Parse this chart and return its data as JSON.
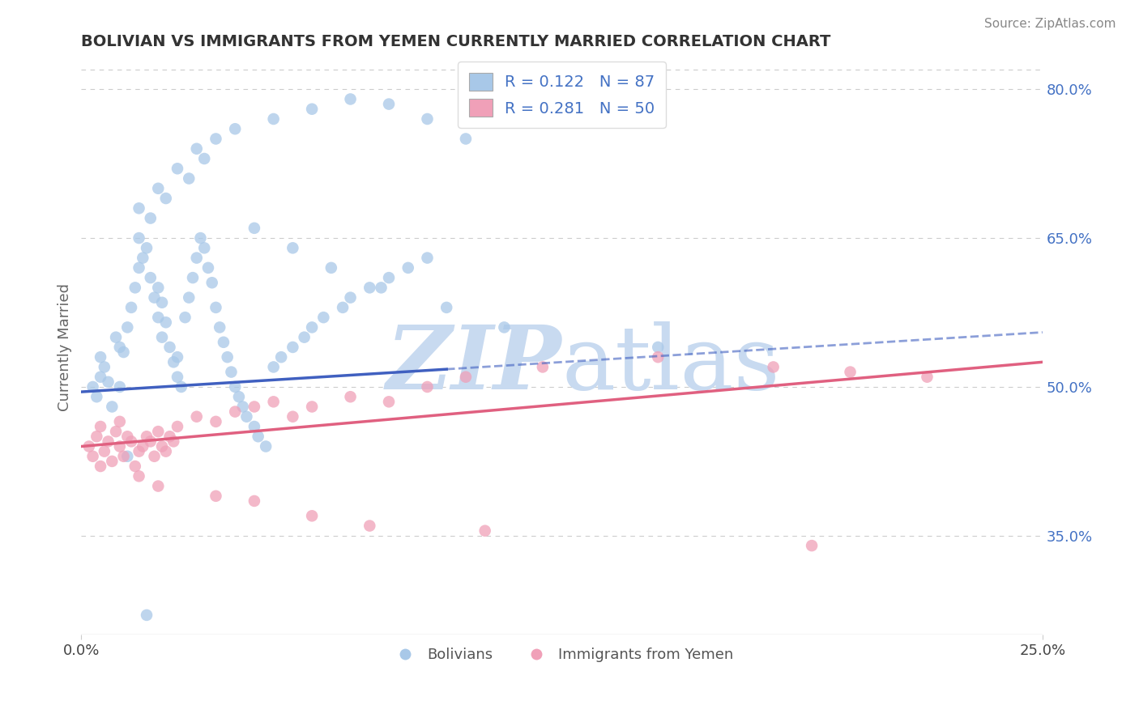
{
  "title": "BOLIVIAN VS IMMIGRANTS FROM YEMEN CURRENTLY MARRIED CORRELATION CHART",
  "source": "Source: ZipAtlas.com",
  "ylabel": "Currently Married",
  "xlim": [
    0.0,
    25.0
  ],
  "ylim": [
    25.0,
    83.0
  ],
  "x_tick_labels": [
    "0.0%",
    "25.0%"
  ],
  "y_ticks_right": [
    35.0,
    50.0,
    65.0,
    80.0
  ],
  "y_tick_labels_right": [
    "35.0%",
    "50.0%",
    "65.0%",
    "80.0%"
  ],
  "blue_color": "#a8c8e8",
  "pink_color": "#f0a0b8",
  "blue_line_color": "#4060c0",
  "pink_line_color": "#e06080",
  "legend_text_color": "#4472c4",
  "R_blue": 0.122,
  "N_blue": 87,
  "R_pink": 0.281,
  "N_pink": 50,
  "legend_label_blue": "Bolivians",
  "legend_label_pink": "Immigrants from Yemen",
  "blue_scatter_x": [
    0.3,
    0.4,
    0.5,
    0.5,
    0.6,
    0.7,
    0.8,
    0.9,
    1.0,
    1.0,
    1.1,
    1.2,
    1.3,
    1.4,
    1.5,
    1.5,
    1.6,
    1.7,
    1.8,
    1.9,
    2.0,
    2.0,
    2.1,
    2.1,
    2.2,
    2.3,
    2.4,
    2.5,
    2.5,
    2.6,
    2.7,
    2.8,
    2.9,
    3.0,
    3.1,
    3.2,
    3.3,
    3.4,
    3.5,
    3.6,
    3.7,
    3.8,
    3.9,
    4.0,
    4.1,
    4.2,
    4.3,
    4.5,
    4.6,
    4.8,
    5.0,
    5.2,
    5.5,
    5.8,
    6.0,
    6.3,
    6.8,
    7.0,
    7.5,
    8.0,
    8.5,
    9.0,
    1.5,
    2.0,
    2.5,
    3.0,
    3.5,
    4.0,
    5.0,
    6.0,
    7.0,
    8.0,
    9.0,
    10.0,
    1.8,
    2.2,
    2.8,
    3.2,
    4.5,
    5.5,
    6.5,
    7.8,
    9.5,
    11.0,
    15.0,
    1.2,
    1.7
  ],
  "blue_scatter_y": [
    50.0,
    49.0,
    51.0,
    53.0,
    52.0,
    50.5,
    48.0,
    55.0,
    50.0,
    54.0,
    53.5,
    56.0,
    58.0,
    60.0,
    62.0,
    65.0,
    63.0,
    64.0,
    61.0,
    59.0,
    57.0,
    60.0,
    58.5,
    55.0,
    56.5,
    54.0,
    52.5,
    51.0,
    53.0,
    50.0,
    57.0,
    59.0,
    61.0,
    63.0,
    65.0,
    64.0,
    62.0,
    60.5,
    58.0,
    56.0,
    54.5,
    53.0,
    51.5,
    50.0,
    49.0,
    48.0,
    47.0,
    46.0,
    45.0,
    44.0,
    52.0,
    53.0,
    54.0,
    55.0,
    56.0,
    57.0,
    58.0,
    59.0,
    60.0,
    61.0,
    62.0,
    63.0,
    68.0,
    70.0,
    72.0,
    74.0,
    75.0,
    76.0,
    77.0,
    78.0,
    79.0,
    78.5,
    77.0,
    75.0,
    67.0,
    69.0,
    71.0,
    73.0,
    66.0,
    64.0,
    62.0,
    60.0,
    58.0,
    56.0,
    54.0,
    43.0,
    27.0
  ],
  "pink_scatter_x": [
    0.2,
    0.3,
    0.4,
    0.5,
    0.5,
    0.6,
    0.7,
    0.8,
    0.9,
    1.0,
    1.0,
    1.1,
    1.2,
    1.3,
    1.4,
    1.5,
    1.6,
    1.7,
    1.8,
    1.9,
    2.0,
    2.1,
    2.2,
    2.3,
    2.4,
    2.5,
    3.0,
    3.5,
    4.0,
    4.5,
    5.0,
    5.5,
    6.0,
    7.0,
    8.0,
    9.0,
    10.0,
    12.0,
    15.0,
    18.0,
    20.0,
    22.0,
    1.5,
    2.0,
    3.5,
    4.5,
    6.0,
    7.5,
    10.5,
    19.0
  ],
  "pink_scatter_y": [
    44.0,
    43.0,
    45.0,
    42.0,
    46.0,
    43.5,
    44.5,
    42.5,
    45.5,
    44.0,
    46.5,
    43.0,
    45.0,
    44.5,
    42.0,
    43.5,
    44.0,
    45.0,
    44.5,
    43.0,
    45.5,
    44.0,
    43.5,
    45.0,
    44.5,
    46.0,
    47.0,
    46.5,
    47.5,
    48.0,
    48.5,
    47.0,
    48.0,
    49.0,
    48.5,
    50.0,
    51.0,
    52.0,
    53.0,
    52.0,
    51.5,
    51.0,
    41.0,
    40.0,
    39.0,
    38.5,
    37.0,
    36.0,
    35.5,
    34.0
  ],
  "background_color": "#ffffff",
  "grid_color": "#cccccc",
  "watermark_color": "#c8daf0"
}
